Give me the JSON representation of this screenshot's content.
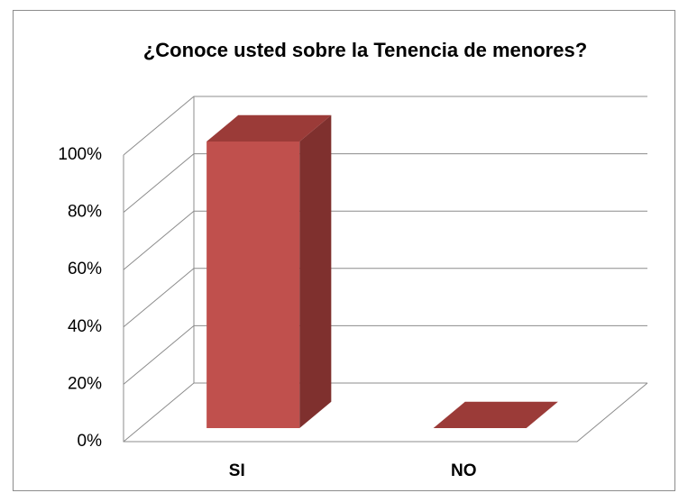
{
  "chart_data": {
    "type": "bar3d",
    "title": "¿Conoce usted sobre la Tenencia de menores?",
    "categories": [
      "SI",
      "NO"
    ],
    "values": [
      100,
      0
    ],
    "color": "#c0504d",
    "ylim": [
      0,
      100
    ],
    "yticks": [
      {
        "value": 0,
        "label": "0%"
      },
      {
        "value": 20,
        "label": "20%"
      },
      {
        "value": 40,
        "label": "40%"
      },
      {
        "value": 60,
        "label": "60%"
      },
      {
        "value": 80,
        "label": "80%"
      },
      {
        "value": 100,
        "label": "100%"
      }
    ],
    "grid": true
  }
}
